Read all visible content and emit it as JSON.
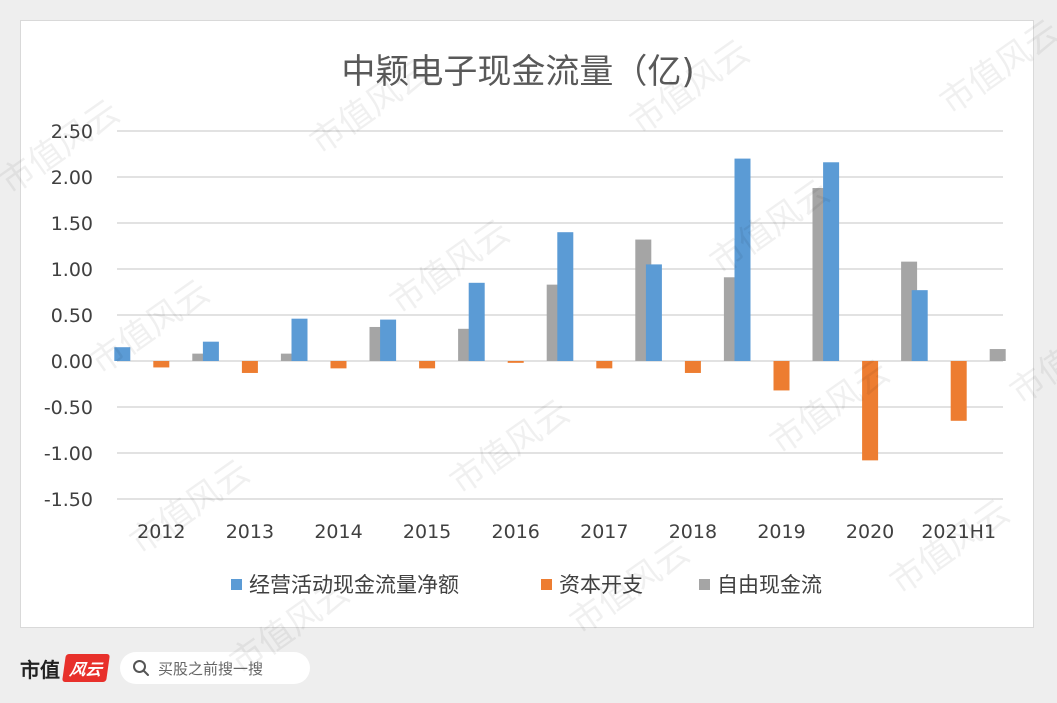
{
  "chart_data": {
    "type": "bar",
    "title": "中颖电子现金流量（亿)",
    "categories": [
      "2012",
      "2013",
      "2014",
      "2015",
      "2016",
      "2017",
      "2018",
      "2019",
      "2020",
      "2021H1"
    ],
    "series": [
      {
        "name": "经营活动现金流量净额",
        "color": "#5b9bd5",
        "values": [
          0.15,
          0.21,
          0.46,
          0.45,
          0.85,
          1.4,
          1.05,
          2.2,
          2.16,
          0.77
        ]
      },
      {
        "name": "资本开支",
        "color": "#ed7d31",
        "values": [
          -0.07,
          -0.13,
          -0.08,
          -0.08,
          -0.02,
          -0.08,
          -0.13,
          -0.32,
          -1.08,
          -0.65
        ]
      },
      {
        "name": "自由现金流",
        "color": "#a5a5a5",
        "values": [
          0.08,
          0.08,
          0.37,
          0.35,
          0.83,
          1.32,
          0.91,
          1.88,
          1.08,
          0.13
        ]
      }
    ],
    "ylim": [
      -1.5,
      2.5
    ],
    "yticks": [
      "2.50",
      "2.00",
      "1.50",
      "1.00",
      "0.50",
      "0.00",
      "-0.50",
      "-1.00",
      "-1.50"
    ],
    "ytick_values": [
      2.5,
      2.0,
      1.5,
      1.0,
      0.5,
      0.0,
      -0.5,
      -1.0,
      -1.5
    ],
    "grid": true,
    "legend_position": "bottom"
  },
  "footer": {
    "brand_text": "市值",
    "brand_logo_text": "风云",
    "search_placeholder": "买股之前搜一搜"
  },
  "watermark_text": "市值风云"
}
